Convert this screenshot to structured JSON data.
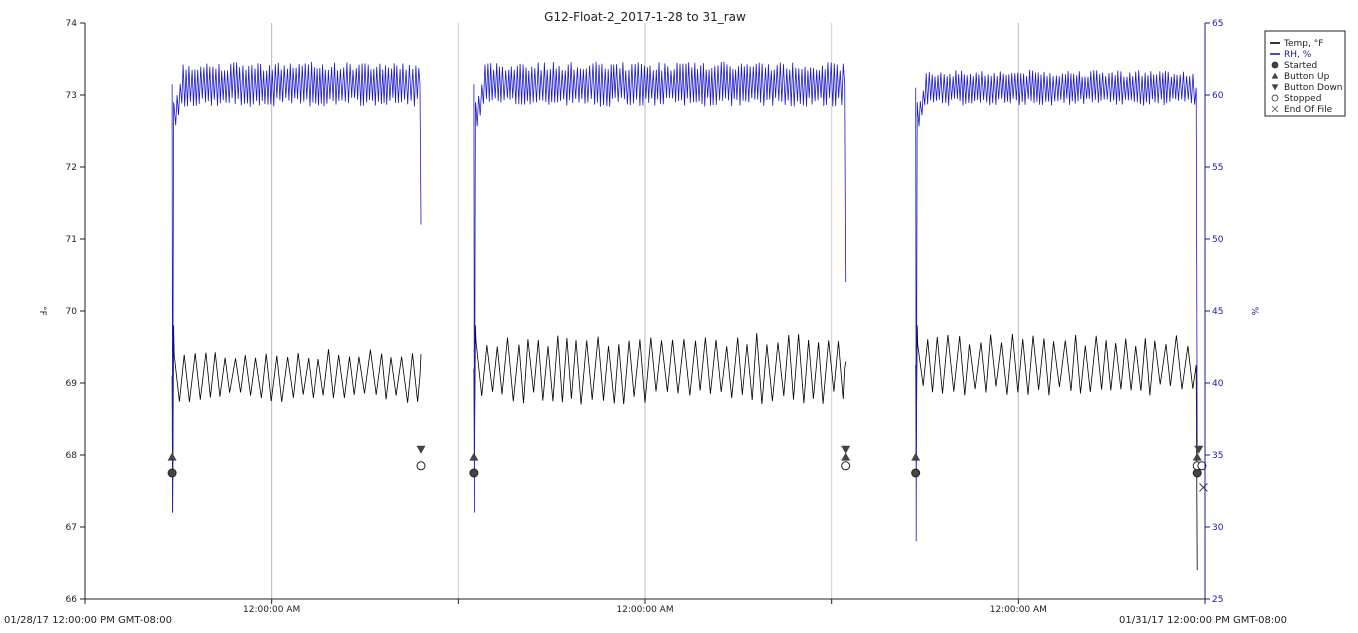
{
  "chart_data": {
    "type": "line",
    "title": "G12-Float-2_2017-1-28 to 31_raw",
    "x_start_label": "01/28/17 12:00:00 PM GMT-08:00",
    "x_end_label": "01/31/17 12:00:00 PM GMT-08:00",
    "x_range_hours": [
      0,
      72
    ],
    "x_major_tick_label": "12:00:00 AM",
    "x_major_ticks_hours": [
      12,
      36,
      60
    ],
    "x_minor_ticks_hours": [
      24,
      48
    ],
    "y_left": {
      "label": "°F",
      "min": 66,
      "max": 74,
      "ticks": [
        "66",
        "67",
        "68",
        "69",
        "70",
        "71",
        "72",
        "73",
        "74"
      ]
    },
    "y_right": {
      "label": "%",
      "min": 25,
      "max": 65,
      "ticks": [
        "25",
        "30",
        "35",
        "40",
        "45",
        "50",
        "55",
        "60",
        "65"
      ],
      "color": "#1a1acc"
    },
    "grid": "vertical",
    "legend_placement": "top-right",
    "series": [
      {
        "name": "Temp, °F",
        "axis": "left",
        "color": "#000000",
        "segments": [
          {
            "start_hour": 5.6,
            "end_hour": 21.6,
            "spike_low": 67.2,
            "peak": 69.8,
            "band_low": 68.8,
            "band_high": 69.4,
            "end_value": 69.4
          },
          {
            "start_hour": 25.0,
            "end_hour": 48.9,
            "spike_low": 67.9,
            "peak": 69.8,
            "band_low": 68.8,
            "band_high": 69.6,
            "end_value": 69.3
          },
          {
            "start_hour": 53.4,
            "end_hour": 71.5,
            "spike_low": 67.9,
            "peak": 69.8,
            "band_low": 68.9,
            "band_high": 69.6,
            "end_value": 66.4
          }
        ]
      },
      {
        "name": "RH, %",
        "axis": "right",
        "color": "#1a1acc",
        "segments": [
          {
            "start_hour": 5.6,
            "end_hour": 21.6,
            "spike_low": 31,
            "band_low": 59.5,
            "band_high": 62.0,
            "end_value": 51
          },
          {
            "start_hour": 25.0,
            "end_hour": 48.9,
            "spike_low": 31,
            "band_low": 59.5,
            "band_high": 62.0,
            "end_value": 47
          },
          {
            "start_hour": 53.4,
            "end_hour": 71.5,
            "spike_low": 29,
            "band_low": 59.5,
            "band_high": 61.5,
            "end_value": 35
          }
        ]
      }
    ],
    "events": [
      {
        "type": "Started",
        "hour": 5.6,
        "value": 67.75
      },
      {
        "type": "Button Up",
        "hour": 5.6,
        "value": 67.97
      },
      {
        "type": "Button Down",
        "hour": 21.6,
        "value": 68.08
      },
      {
        "type": "Stopped",
        "hour": 21.6,
        "value": 67.85
      },
      {
        "type": "Started",
        "hour": 25.0,
        "value": 67.75
      },
      {
        "type": "Button Up",
        "hour": 25.0,
        "value": 67.97
      },
      {
        "type": "Button Down",
        "hour": 48.9,
        "value": 68.08
      },
      {
        "type": "Button Up",
        "hour": 48.9,
        "value": 67.97
      },
      {
        "type": "Stopped",
        "hour": 48.9,
        "value": 67.85
      },
      {
        "type": "Started",
        "hour": 53.4,
        "value": 67.75
      },
      {
        "type": "Button Up",
        "hour": 53.4,
        "value": 67.97
      },
      {
        "type": "Started",
        "hour": 71.5,
        "value": 67.75
      },
      {
        "type": "Button Up",
        "hour": 71.5,
        "value": 67.97
      },
      {
        "type": "Button Down",
        "hour": 71.6,
        "value": 68.08
      },
      {
        "type": "Stopped",
        "hour": 71.5,
        "value": 67.85
      },
      {
        "type": "Stopped",
        "hour": 71.8,
        "value": 67.85
      },
      {
        "type": "End Of File",
        "hour": 71.9,
        "value": 67.55
      }
    ],
    "legend": [
      {
        "label": "Temp, °F",
        "symbol": "line",
        "color": "#000000"
      },
      {
        "label": "RH, %",
        "symbol": "line",
        "color": "#1a1acc"
      },
      {
        "label": "Started",
        "symbol": "filled-circle"
      },
      {
        "label": "Button Up",
        "symbol": "up-triangle"
      },
      {
        "label": "Button Down",
        "symbol": "down-triangle"
      },
      {
        "label": "Stopped",
        "symbol": "open-circle"
      },
      {
        "label": "End Of File",
        "symbol": "x-mark"
      }
    ]
  }
}
